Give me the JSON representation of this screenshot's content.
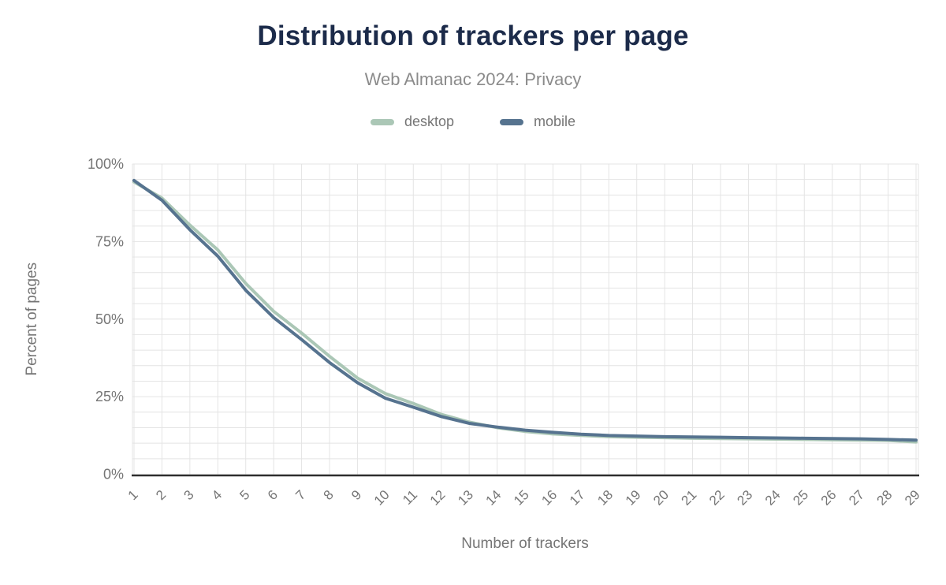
{
  "figure": {
    "title": "Distribution of trackers per page",
    "subtitle": "Web Almanac 2024: Privacy"
  },
  "legend": {
    "items": [
      {
        "label": "desktop",
        "color": "#abc7b6"
      },
      {
        "label": "mobile",
        "color": "#56738f"
      }
    ]
  },
  "chart_data": {
    "type": "line",
    "title": "Distribution of trackers per page",
    "subtitle": "Web Almanac 2024: Privacy",
    "xlabel": "Number of trackers",
    "ylabel": "Percent of pages",
    "x": [
      1,
      2,
      3,
      4,
      5,
      6,
      7,
      8,
      9,
      10,
      11,
      12,
      13,
      14,
      15,
      16,
      17,
      18,
      19,
      20,
      21,
      22,
      23,
      24,
      25,
      26,
      27,
      28,
      29
    ],
    "series": [
      {
        "name": "desktop",
        "color": "#abc7b6",
        "values": [
          94.2,
          89.0,
          80.3,
          72.3,
          61.5,
          52.5,
          45.5,
          38.0,
          31.0,
          26.0,
          22.8,
          19.3,
          16.8,
          15.0,
          13.8,
          13.0,
          12.5,
          12.1,
          11.9,
          11.8,
          11.6,
          11.5,
          11.4,
          11.3,
          11.2,
          11.1,
          11.0,
          10.9,
          10.4
        ]
      },
      {
        "name": "mobile",
        "color": "#56738f",
        "values": [
          94.7,
          88.3,
          78.8,
          70.3,
          59.3,
          50.5,
          43.4,
          36.0,
          29.5,
          24.5,
          21.6,
          18.6,
          16.4,
          15.2,
          14.2,
          13.5,
          12.9,
          12.5,
          12.3,
          12.1,
          12.0,
          11.9,
          11.8,
          11.7,
          11.6,
          11.5,
          11.4,
          11.2,
          11.0
        ]
      }
    ],
    "ylim": [
      0,
      100
    ],
    "yticks": [
      0,
      25,
      50,
      75,
      100
    ],
    "ytick_labels": [
      "0%",
      "25%",
      "50%",
      "75%",
      "100%"
    ],
    "grid": {
      "horizontal_step": 5,
      "vertical_per_x": true,
      "on": true
    },
    "legend_position": "top"
  },
  "style": {
    "title_color": "#1c2b4a",
    "subtitle_color": "#8b8b8b",
    "tick_color": "#757575",
    "axis_color": "#2e2e2e",
    "grid_color": "#e4e4e4",
    "background": "#ffffff"
  }
}
